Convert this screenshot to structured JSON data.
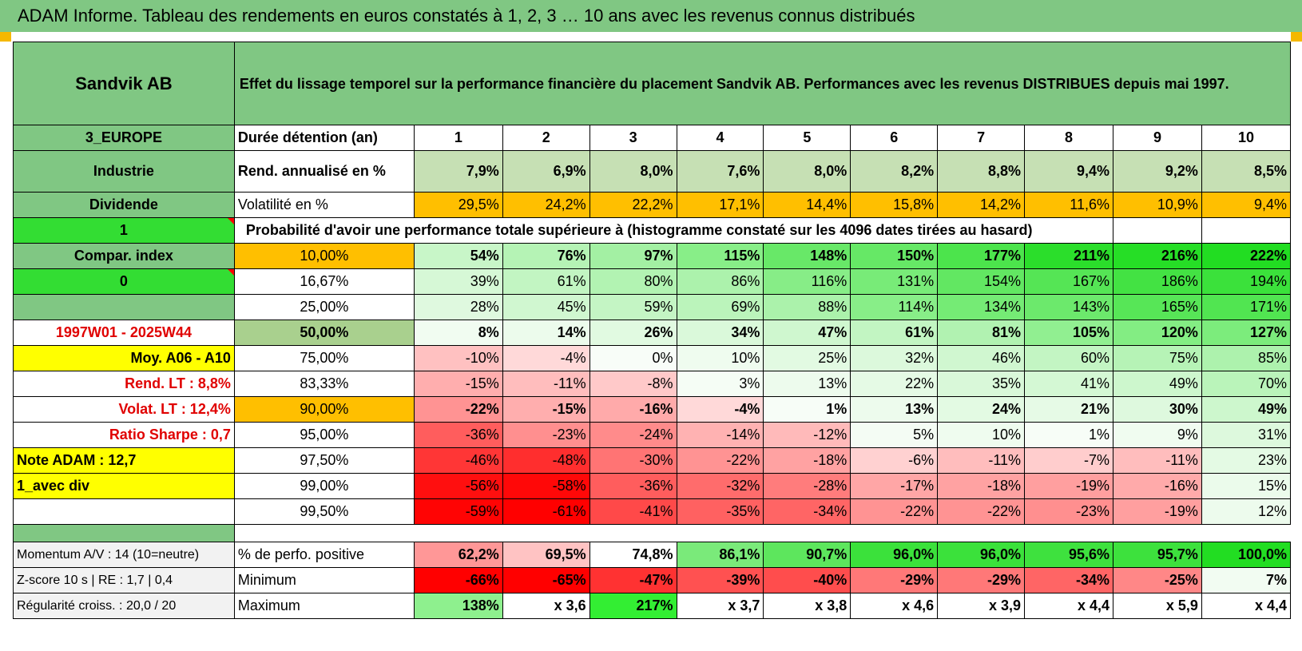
{
  "title": "ADAM Informe. Tableau des rendements en euros constatés à 1, 2, 3 … 10 ans avec les revenus connus distribués",
  "asset_name": "Sandvik AB",
  "description": "Effet du lissage temporel sur la performance financière du placement Sandvik AB. Performances avec les revenus DISTRIBUES depuis mai 1997.",
  "left_labels": {
    "zone": "3_EUROPE",
    "sector": "Industrie",
    "income": "Dividende",
    "flag1": "1",
    "compar": "Compar. index",
    "flag0": "0",
    "period": "1997W01 - 2025W44",
    "moy": "Moy. A06 - A10",
    "rend_lt": "Rend. LT :   8,8%",
    "volat_lt": "Volat. LT :   12,4%",
    "sharpe": "Ratio Sharpe :    0,7",
    "note": "Note ADAM : 12,7",
    "mode": "1_avec div",
    "momentum": "Momentum A/V : 14 (10=neutre)",
    "zscore": "Z-score 10 s | RE : 1,7 | 0,4",
    "regularite": "Régularité croiss. : 20,0 / 20"
  },
  "headers": {
    "duration": "Durée détention (an)",
    "years": [
      "1",
      "2",
      "3",
      "4",
      "5",
      "6",
      "7",
      "8",
      "9",
      "10"
    ],
    "rend": "Rend. annualisé en %",
    "vol": "Volatilité en %",
    "proba": "Probabilité d'avoir une performance totale supérieure à (histogramme constaté sur les 4096 dates tirées au hasard)",
    "pos": "% de perfo. positive",
    "min": "Minimum",
    "max": "Maximum"
  },
  "rend_values": [
    "7,9%",
    "6,9%",
    "8,0%",
    "7,6%",
    "8,0%",
    "8,2%",
    "8,8%",
    "9,4%",
    "9,2%",
    "8,5%"
  ],
  "vol_values": [
    "29,5%",
    "24,2%",
    "22,2%",
    "17,1%",
    "14,4%",
    "15,8%",
    "14,2%",
    "11,6%",
    "10,9%",
    "9,4%"
  ],
  "prob_rows": [
    {
      "p": "10,00%",
      "v": [
        "54%",
        "76%",
        "97%",
        "115%",
        "148%",
        "150%",
        "177%",
        "211%",
        "216%",
        "222%"
      ]
    },
    {
      "p": "16,67%",
      "v": [
        "39%",
        "61%",
        "80%",
        "86%",
        "116%",
        "131%",
        "154%",
        "167%",
        "186%",
        "194%"
      ]
    },
    {
      "p": "25,00%",
      "v": [
        "28%",
        "45%",
        "59%",
        "69%",
        "88%",
        "114%",
        "134%",
        "143%",
        "165%",
        "171%"
      ]
    },
    {
      "p": "50,00%",
      "v": [
        "8%",
        "14%",
        "26%",
        "34%",
        "47%",
        "61%",
        "81%",
        "105%",
        "120%",
        "127%"
      ]
    },
    {
      "p": "75,00%",
      "v": [
        "-10%",
        "-4%",
        "0%",
        "10%",
        "25%",
        "32%",
        "46%",
        "60%",
        "75%",
        "85%"
      ]
    },
    {
      "p": "83,33%",
      "v": [
        "-15%",
        "-11%",
        "-8%",
        "3%",
        "13%",
        "22%",
        "35%",
        "41%",
        "49%",
        "70%"
      ]
    },
    {
      "p": "90,00%",
      "v": [
        "-22%",
        "-15%",
        "-16%",
        "-4%",
        "1%",
        "13%",
        "24%",
        "21%",
        "30%",
        "49%"
      ]
    },
    {
      "p": "95,00%",
      "v": [
        "-36%",
        "-23%",
        "-24%",
        "-14%",
        "-12%",
        "5%",
        "10%",
        "1%",
        "9%",
        "31%"
      ]
    },
    {
      "p": "97,50%",
      "v": [
        "-46%",
        "-48%",
        "-30%",
        "-22%",
        "-18%",
        "-6%",
        "-11%",
        "-7%",
        "-11%",
        "23%"
      ]
    },
    {
      "p": "99,00%",
      "v": [
        "-56%",
        "-58%",
        "-36%",
        "-32%",
        "-28%",
        "-17%",
        "-18%",
        "-19%",
        "-16%",
        "15%"
      ]
    },
    {
      "p": "99,50%",
      "v": [
        "-59%",
        "-61%",
        "-41%",
        "-35%",
        "-34%",
        "-22%",
        "-22%",
        "-23%",
        "-19%",
        "12%"
      ]
    }
  ],
  "pos_values": [
    "62,2%",
    "69,5%",
    "74,8%",
    "86,1%",
    "90,7%",
    "96,0%",
    "96,0%",
    "95,6%",
    "95,7%",
    "100,0%"
  ],
  "min_values": [
    "-66%",
    "-65%",
    "-47%",
    "-39%",
    "-40%",
    "-29%",
    "-29%",
    "-34%",
    "-25%",
    "7%"
  ],
  "max_values": [
    "138%",
    "x 3,6",
    "217%",
    "x 3,7",
    "x 3,8",
    "x 4,6",
    "x 3,9",
    "x 4,4",
    "x 5,9",
    "x 4,4"
  ],
  "colors": {
    "header_green": "#80c783",
    "flag_green": "#33dd33",
    "highlight_yellow": "#ffff00",
    "highlight_orange": "#ffbf00",
    "median_sage": "#a9d08e",
    "positive_green": "#22dd22",
    "negative_red": "#ff0000"
  }
}
